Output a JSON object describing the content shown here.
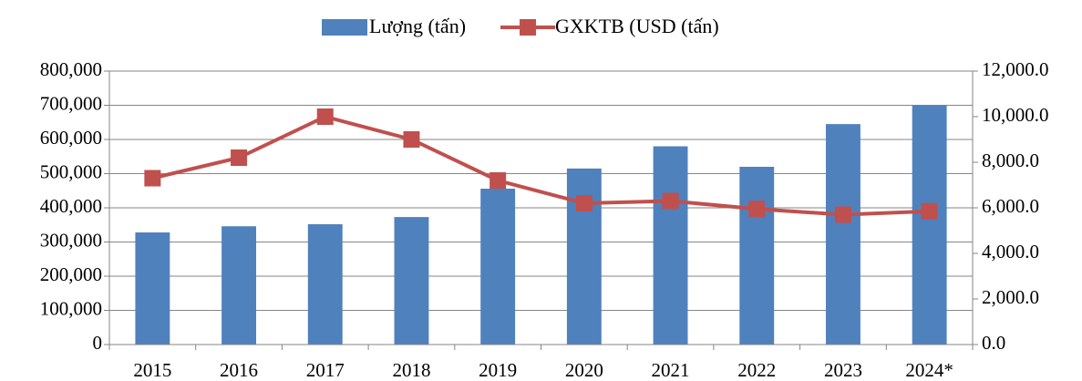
{
  "chart_data": {
    "type": "bar_line",
    "categories": [
      "2015",
      "2016",
      "2017",
      "2018",
      "2019",
      "2020",
      "2021",
      "2022",
      "2023",
      "2024*"
    ],
    "series": [
      {
        "name": "Lượng (tấn)",
        "type": "bar",
        "color": "#4f81bd",
        "values": [
          328000,
          346000,
          352000,
          373000,
          456000,
          515000,
          580000,
          520000,
          645000,
          700000
        ]
      },
      {
        "name": "GXKTB (USD (tấn)",
        "type": "line",
        "axis": "y2",
        "color": "#c0504d",
        "values": [
          7300,
          8200,
          10000,
          9000,
          7200,
          6200,
          6300,
          5950,
          5700,
          5850
        ]
      }
    ],
    "ylim": [
      0,
      800000
    ],
    "yticks": [
      0,
      {
        "value": 100000,
        "label": "100,000"
      },
      {
        "value": 200000,
        "label": "200,000"
      },
      {
        "value": 300000,
        "label": "300,000"
      },
      {
        "value": 400000,
        "label": "400,000"
      },
      {
        "value": 500000,
        "label": "500,000"
      },
      {
        "value": 600000,
        "label": "600,000"
      },
      {
        "value": 700000,
        "label": "700,000"
      },
      {
        "value": 800000,
        "label": "800,000"
      }
    ],
    "y2lim": [
      0,
      12000
    ],
    "y2ticks": [
      {
        "value": 0,
        "label": "0.0"
      },
      {
        "value": 2000,
        "label": "2,000.0"
      },
      {
        "value": 4000,
        "label": "4,000.0"
      },
      {
        "value": 6000,
        "label": "6,000.0"
      },
      {
        "value": 8000,
        "label": "8,000.0"
      },
      {
        "value": 10000,
        "label": "10,000.0"
      },
      {
        "value": 12000,
        "label": "12,000.0"
      }
    ],
    "grid": true,
    "legend": "top"
  }
}
